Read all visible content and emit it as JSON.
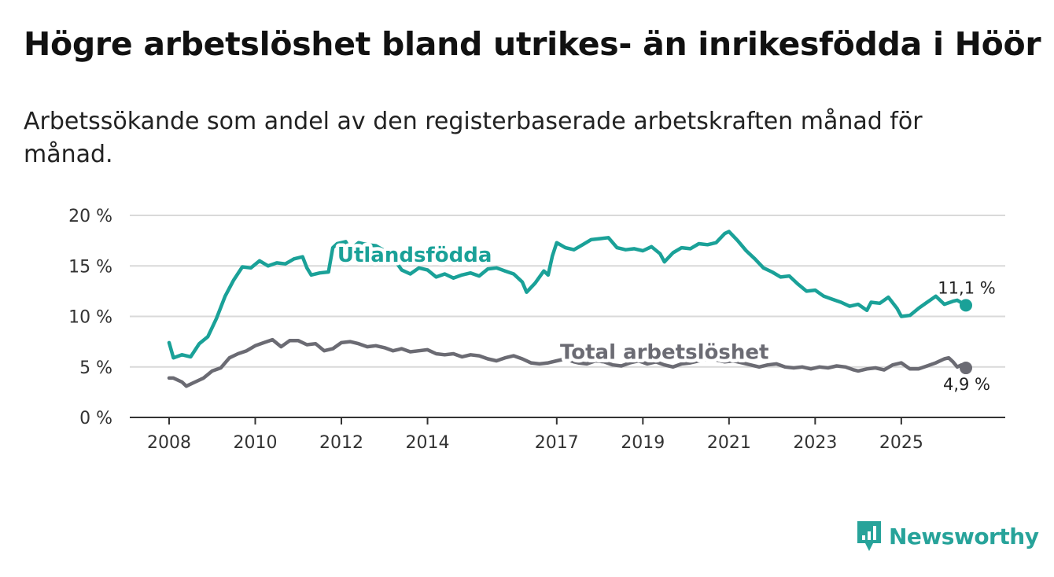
{
  "title": "Högre arbetslöshet bland utrikes- än inrikesfödda i Höör",
  "subtitle": "Arbetssökande som andel av den registerbaserade arbetskraften månad för månad.",
  "brand": {
    "name": "Newsworthy",
    "icon": "newsworthy-logo-icon",
    "color": "#27a39a"
  },
  "colors": {
    "utlandsfodda": "#1aa198",
    "total": "#6b6b73",
    "grid": "#d9d9d9",
    "axis": "#333333"
  },
  "chart_data": {
    "type": "line",
    "title": "Högre arbetslöshet bland utrikes- än inrikesfödda i Höör",
    "xlabel": "",
    "ylabel": "",
    "xlim": [
      2008.0,
      2026.5
    ],
    "ylim": [
      0,
      20
    ],
    "y_ticks": [
      {
        "value": 0,
        "label": "0 %"
      },
      {
        "value": 5,
        "label": "5 %"
      },
      {
        "value": 10,
        "label": "10 %"
      },
      {
        "value": 15,
        "label": "15 %"
      },
      {
        "value": 20,
        "label": "20 %"
      }
    ],
    "x_ticks": [
      {
        "value": 2008,
        "label": "2008"
      },
      {
        "value": 2010,
        "label": "2010"
      },
      {
        "value": 2012,
        "label": "2012"
      },
      {
        "value": 2014,
        "label": "2014"
      },
      {
        "value": 2017,
        "label": "2017"
      },
      {
        "value": 2019,
        "label": "2019"
      },
      {
        "value": 2021,
        "label": "2021"
      },
      {
        "value": 2023,
        "label": "2023"
      },
      {
        "value": 2025,
        "label": "2025"
      }
    ],
    "grid": true,
    "series": [
      {
        "name": "Utlandsfödda",
        "label_at": {
          "x": 2013.7,
          "y": 15.4
        },
        "end_label": "11,1 %",
        "points": [
          [
            2008.0,
            7.4
          ],
          [
            2008.1,
            5.9
          ],
          [
            2008.3,
            6.2
          ],
          [
            2008.5,
            6.0
          ],
          [
            2008.7,
            7.3
          ],
          [
            2008.9,
            8.0
          ],
          [
            2009.1,
            9.8
          ],
          [
            2009.3,
            12.0
          ],
          [
            2009.5,
            13.6
          ],
          [
            2009.7,
            14.9
          ],
          [
            2009.9,
            14.8
          ],
          [
            2010.1,
            15.5
          ],
          [
            2010.3,
            15.0
          ],
          [
            2010.5,
            15.3
          ],
          [
            2010.7,
            15.2
          ],
          [
            2010.9,
            15.7
          ],
          [
            2011.1,
            15.9
          ],
          [
            2011.2,
            14.8
          ],
          [
            2011.3,
            14.1
          ],
          [
            2011.5,
            14.3
          ],
          [
            2011.7,
            14.4
          ],
          [
            2011.8,
            16.8
          ],
          [
            2011.9,
            17.2
          ],
          [
            2012.1,
            17.4
          ],
          [
            2012.2,
            16.6
          ],
          [
            2012.4,
            17.3
          ],
          [
            2012.6,
            17.1
          ],
          [
            2012.8,
            17.0
          ],
          [
            2013.0,
            16.5
          ],
          [
            2013.2,
            15.8
          ],
          [
            2013.4,
            14.6
          ],
          [
            2013.6,
            14.2
          ],
          [
            2013.8,
            14.8
          ],
          [
            2014.0,
            14.6
          ],
          [
            2014.2,
            13.9
          ],
          [
            2014.4,
            14.2
          ],
          [
            2014.6,
            13.8
          ],
          [
            2014.8,
            14.1
          ],
          [
            2015.0,
            14.3
          ],
          [
            2015.2,
            14.0
          ],
          [
            2015.4,
            14.7
          ],
          [
            2015.6,
            14.8
          ],
          [
            2015.8,
            14.5
          ],
          [
            2016.0,
            14.2
          ],
          [
            2016.2,
            13.4
          ],
          [
            2016.3,
            12.4
          ],
          [
            2016.5,
            13.3
          ],
          [
            2016.7,
            14.5
          ],
          [
            2016.8,
            14.1
          ],
          [
            2016.9,
            16.0
          ],
          [
            2017.0,
            17.3
          ],
          [
            2017.2,
            16.8
          ],
          [
            2017.4,
            16.6
          ],
          [
            2017.6,
            17.1
          ],
          [
            2017.8,
            17.6
          ],
          [
            2018.0,
            17.7
          ],
          [
            2018.2,
            17.8
          ],
          [
            2018.4,
            16.8
          ],
          [
            2018.6,
            16.6
          ],
          [
            2018.8,
            16.7
          ],
          [
            2019.0,
            16.5
          ],
          [
            2019.2,
            16.9
          ],
          [
            2019.4,
            16.2
          ],
          [
            2019.5,
            15.4
          ],
          [
            2019.7,
            16.3
          ],
          [
            2019.9,
            16.8
          ],
          [
            2020.1,
            16.7
          ],
          [
            2020.3,
            17.2
          ],
          [
            2020.5,
            17.1
          ],
          [
            2020.7,
            17.3
          ],
          [
            2020.9,
            18.2
          ],
          [
            2021.0,
            18.4
          ],
          [
            2021.2,
            17.5
          ],
          [
            2021.4,
            16.5
          ],
          [
            2021.6,
            15.7
          ],
          [
            2021.8,
            14.8
          ],
          [
            2022.0,
            14.4
          ],
          [
            2022.2,
            13.9
          ],
          [
            2022.4,
            14.0
          ],
          [
            2022.6,
            13.2
          ],
          [
            2022.8,
            12.5
          ],
          [
            2023.0,
            12.6
          ],
          [
            2023.2,
            12.0
          ],
          [
            2023.4,
            11.7
          ],
          [
            2023.6,
            11.4
          ],
          [
            2023.8,
            11.0
          ],
          [
            2024.0,
            11.2
          ],
          [
            2024.2,
            10.6
          ],
          [
            2024.3,
            11.4
          ],
          [
            2024.5,
            11.3
          ],
          [
            2024.7,
            11.9
          ],
          [
            2024.9,
            10.8
          ],
          [
            2025.0,
            10.0
          ],
          [
            2025.2,
            10.1
          ],
          [
            2025.4,
            10.8
          ],
          [
            2025.6,
            11.4
          ],
          [
            2025.8,
            12.0
          ],
          [
            2025.9,
            11.6
          ],
          [
            2026.0,
            11.2
          ],
          [
            2026.2,
            11.5
          ],
          [
            2026.3,
            11.6
          ],
          [
            2026.5,
            11.1
          ]
        ]
      },
      {
        "name": "Total arbetslöshet",
        "label_at": {
          "x": 2019.5,
          "y": 5.8
        },
        "end_label": "4,9 %",
        "points": [
          [
            2008.0,
            3.9
          ],
          [
            2008.1,
            3.9
          ],
          [
            2008.3,
            3.5
          ],
          [
            2008.4,
            3.1
          ],
          [
            2008.6,
            3.5
          ],
          [
            2008.8,
            3.9
          ],
          [
            2009.0,
            4.6
          ],
          [
            2009.2,
            4.9
          ],
          [
            2009.4,
            5.9
          ],
          [
            2009.6,
            6.3
          ],
          [
            2009.8,
            6.6
          ],
          [
            2010.0,
            7.1
          ],
          [
            2010.2,
            7.4
          ],
          [
            2010.4,
            7.7
          ],
          [
            2010.6,
            7.0
          ],
          [
            2010.8,
            7.6
          ],
          [
            2011.0,
            7.6
          ],
          [
            2011.2,
            7.2
          ],
          [
            2011.4,
            7.3
          ],
          [
            2011.6,
            6.6
          ],
          [
            2011.8,
            6.8
          ],
          [
            2012.0,
            7.4
          ],
          [
            2012.2,
            7.5
          ],
          [
            2012.4,
            7.3
          ],
          [
            2012.6,
            7.0
          ],
          [
            2012.8,
            7.1
          ],
          [
            2013.0,
            6.9
          ],
          [
            2013.2,
            6.6
          ],
          [
            2013.4,
            6.8
          ],
          [
            2013.6,
            6.5
          ],
          [
            2013.8,
            6.6
          ],
          [
            2014.0,
            6.7
          ],
          [
            2014.2,
            6.3
          ],
          [
            2014.4,
            6.2
          ],
          [
            2014.6,
            6.3
          ],
          [
            2014.8,
            6.0
          ],
          [
            2015.0,
            6.2
          ],
          [
            2015.2,
            6.1
          ],
          [
            2015.4,
            5.8
          ],
          [
            2015.6,
            5.6
          ],
          [
            2015.8,
            5.9
          ],
          [
            2016.0,
            6.1
          ],
          [
            2016.2,
            5.8
          ],
          [
            2016.4,
            5.4
          ],
          [
            2016.6,
            5.3
          ],
          [
            2016.8,
            5.4
          ],
          [
            2017.0,
            5.6
          ],
          [
            2017.2,
            5.8
          ],
          [
            2017.4,
            5.5
          ],
          [
            2017.5,
            5.4
          ],
          [
            2017.7,
            5.3
          ],
          [
            2017.9,
            5.6
          ],
          [
            2018.1,
            5.5
          ],
          [
            2018.3,
            5.2
          ],
          [
            2018.5,
            5.1
          ],
          [
            2018.7,
            5.4
          ],
          [
            2018.9,
            5.6
          ],
          [
            2019.1,
            5.3
          ],
          [
            2019.3,
            5.5
          ],
          [
            2019.5,
            5.2
          ],
          [
            2019.7,
            5.0
          ],
          [
            2019.9,
            5.3
          ],
          [
            2020.1,
            5.4
          ],
          [
            2020.3,
            5.6
          ],
          [
            2020.5,
            5.8
          ],
          [
            2020.7,
            5.7
          ],
          [
            2020.9,
            5.5
          ],
          [
            2021.1,
            5.6
          ],
          [
            2021.3,
            5.4
          ],
          [
            2021.5,
            5.2
          ],
          [
            2021.7,
            5.0
          ],
          [
            2021.9,
            5.2
          ],
          [
            2022.1,
            5.3
          ],
          [
            2022.3,
            5.0
          ],
          [
            2022.5,
            4.9
          ],
          [
            2022.7,
            5.0
          ],
          [
            2022.9,
            4.8
          ],
          [
            2023.1,
            5.0
          ],
          [
            2023.3,
            4.9
          ],
          [
            2023.5,
            5.1
          ],
          [
            2023.7,
            5.0
          ],
          [
            2023.9,
            4.7
          ],
          [
            2024.0,
            4.6
          ],
          [
            2024.2,
            4.8
          ],
          [
            2024.4,
            4.9
          ],
          [
            2024.6,
            4.7
          ],
          [
            2024.8,
            5.2
          ],
          [
            2025.0,
            5.4
          ],
          [
            2025.2,
            4.8
          ],
          [
            2025.4,
            4.8
          ],
          [
            2025.6,
            5.1
          ],
          [
            2025.8,
            5.4
          ],
          [
            2026.0,
            5.8
          ],
          [
            2026.1,
            5.9
          ],
          [
            2026.2,
            5.5
          ],
          [
            2026.3,
            5.0
          ],
          [
            2026.4,
            5.2
          ],
          [
            2026.5,
            4.9
          ]
        ]
      }
    ]
  }
}
